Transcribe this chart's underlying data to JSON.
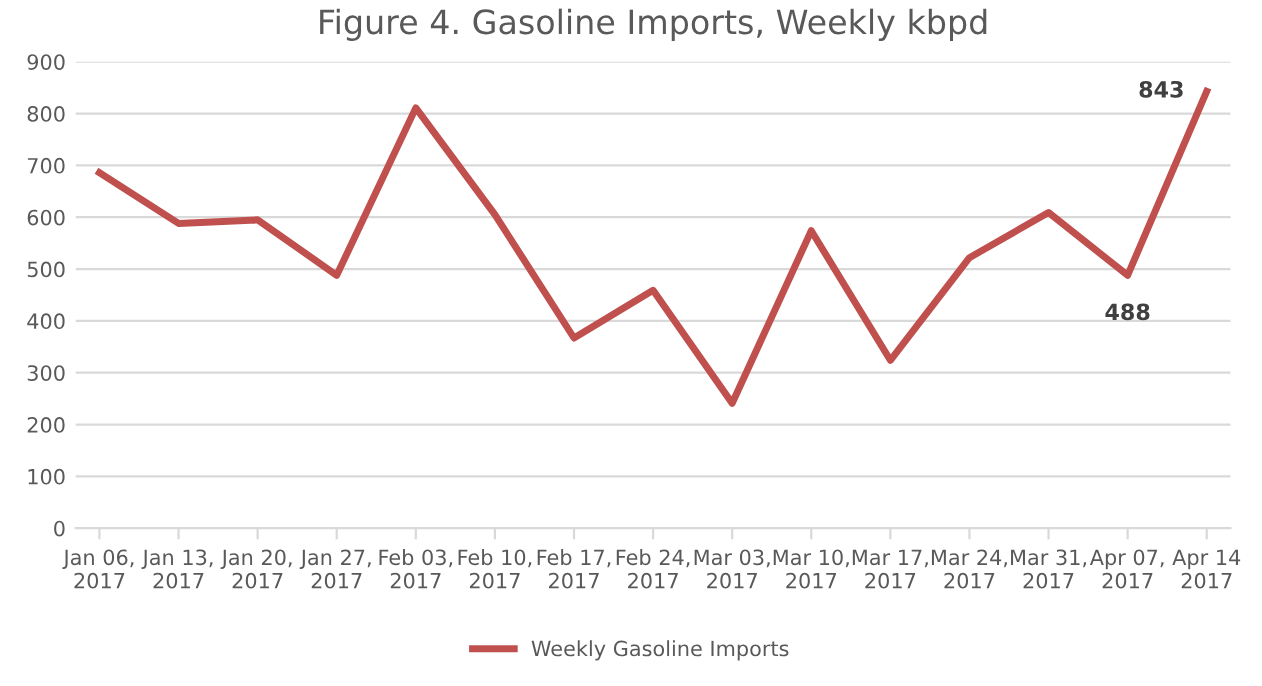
{
  "chart_data": {
    "type": "line",
    "title": "Figure 4. Gasoline Imports, Weekly kbpd",
    "categories": [
      "Jan 06,\n2017",
      "Jan 13,\n2017",
      "Jan 20,\n2017",
      "Jan 27,\n2017",
      "Feb 03,\n2017",
      "Feb 10,\n2017",
      "Feb 17,\n2017",
      "Feb 24,\n2017",
      "Mar 03,\n2017",
      "Mar 10,\n2017",
      "Mar 17,\n2017",
      "Mar 24,\n2017",
      "Mar 31,\n2017",
      "Apr 07,\n2017",
      "Apr 14\n2017"
    ],
    "series": [
      {
        "name": "Weekly Gasoline Imports",
        "color": "#c0504d",
        "values": [
          686,
          588,
          595,
          488,
          811,
          605,
          367,
          459,
          241,
          574,
          324,
          522,
          609,
          488,
          843
        ],
        "value_labels": [
          null,
          null,
          null,
          null,
          null,
          null,
          null,
          null,
          null,
          null,
          null,
          null,
          null,
          "488",
          "843"
        ]
      }
    ],
    "ylim": [
      0,
      900
    ],
    "yticks": [
      0,
      100,
      200,
      300,
      400,
      500,
      600,
      700,
      800,
      900
    ],
    "grid": "y",
    "legend": "bottom",
    "marker": "none",
    "line_style": "solid"
  }
}
